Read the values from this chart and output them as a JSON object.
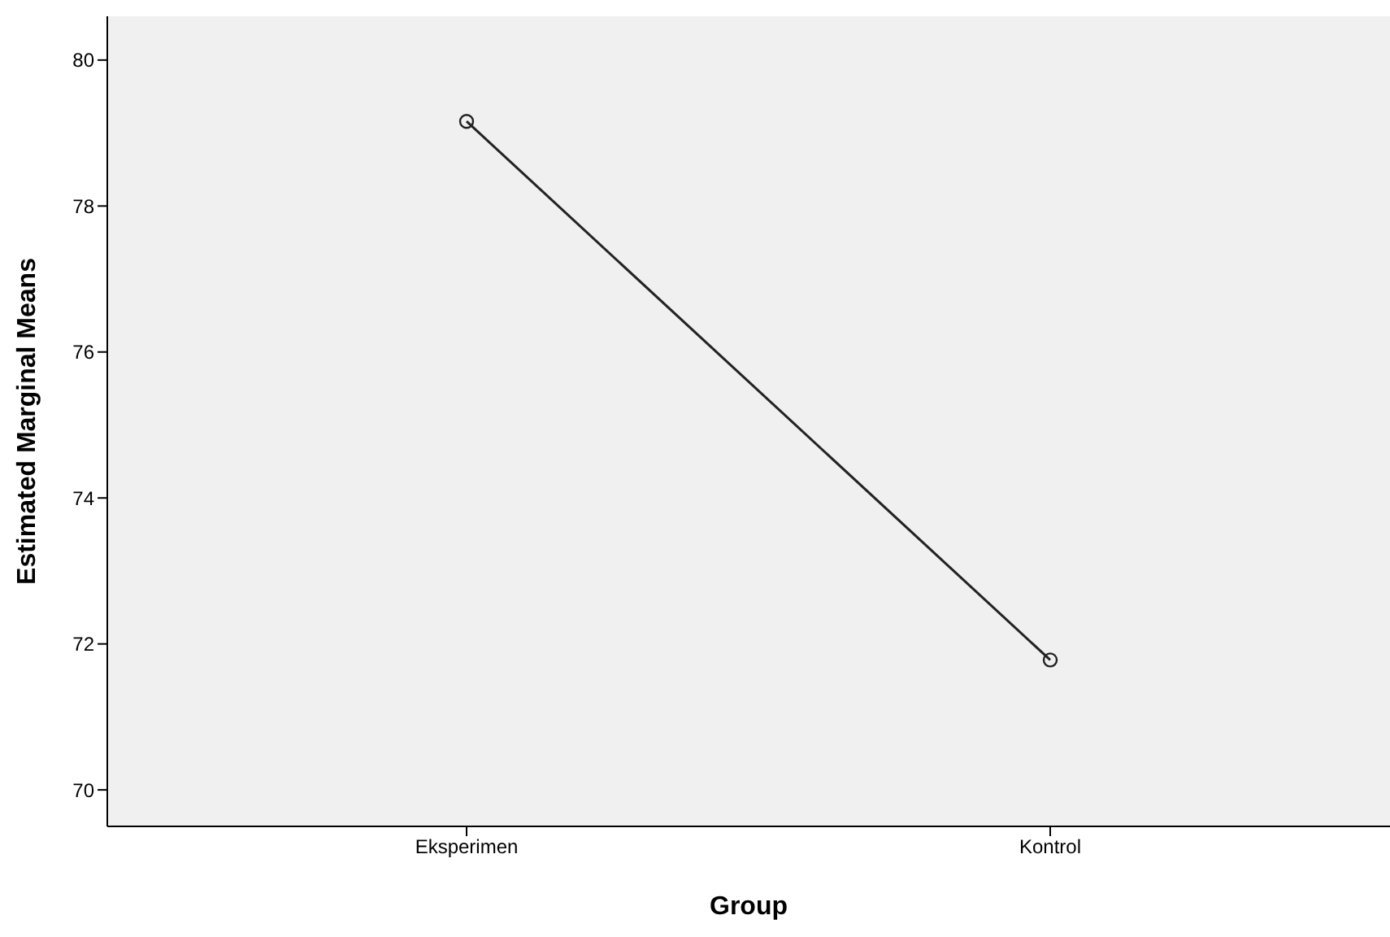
{
  "chart_data": {
    "type": "line",
    "xlabel": "Group",
    "ylabel": "Estimated Marginal Means",
    "categories": [
      "Eksperimen",
      "Kontrol"
    ],
    "series": [
      {
        "color": "#222222",
        "values": [
          79.16,
          71.78
        ]
      }
    ],
    "ylim": [
      69.5,
      80.6
    ],
    "yticks": [
      70,
      72,
      74,
      76,
      78,
      80
    ],
    "marker": "circle",
    "line_style": "solid",
    "legend": false,
    "grid": false
  }
}
